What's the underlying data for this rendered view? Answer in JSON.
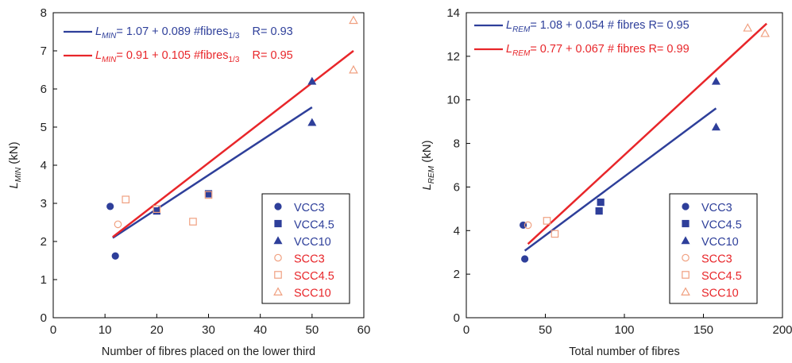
{
  "colors": {
    "blue": "#2e3f9a",
    "red": "#e8262a",
    "salmon": "#f0a080",
    "axis": "#000000"
  },
  "chart_data": [
    {
      "type": "scatter",
      "xlabel": "Number of fibres placed on the lower third",
      "ylabel": {
        "main": "L",
        "sub": "MIN",
        "unit": " (kN)"
      },
      "xlim": [
        0,
        60
      ],
      "ylim": [
        0,
        8
      ],
      "xticks": [
        0,
        10,
        20,
        30,
        40,
        50,
        60
      ],
      "yticks": [
        0,
        1,
        2,
        3,
        4,
        5,
        6,
        7,
        8
      ],
      "equations": [
        {
          "color": "blue",
          "lead": "L",
          "sub": "MIN",
          "body": "= 1.07 + 0.089 #fibres",
          "tail_sub": "1/3",
          "r": "R= 0.93"
        },
        {
          "color": "red",
          "lead": "L",
          "sub": "MIN",
          "body": "= 0.91 + 0.105 #fibres",
          "tail_sub": "1/3",
          "r": "R= 0.95"
        }
      ],
      "fits": [
        {
          "color": "blue",
          "x": [
            11.5,
            50
          ],
          "intercept": 1.07,
          "slope": 0.089
        },
        {
          "color": "red",
          "x": [
            11.5,
            58
          ],
          "intercept": 0.91,
          "slope": 0.105
        }
      ],
      "series": [
        {
          "name": "VCC3",
          "marker": "circle",
          "filled": true,
          "color": "blue",
          "points": [
            [
              11,
              2.92
            ],
            [
              12,
              1.62
            ]
          ]
        },
        {
          "name": "VCC4.5",
          "marker": "square",
          "filled": true,
          "color": "blue",
          "points": [
            [
              20,
              2.8
            ],
            [
              30,
              3.25
            ]
          ]
        },
        {
          "name": "VCC10",
          "marker": "triangle",
          "filled": true,
          "color": "blue",
          "points": [
            [
              50,
              6.2
            ],
            [
              50,
              5.12
            ]
          ]
        },
        {
          "name": "SCC3",
          "marker": "circle",
          "filled": false,
          "color": "salmon",
          "points": [
            [
              12.5,
              2.45
            ]
          ]
        },
        {
          "name": "SCC4.5",
          "marker": "square",
          "filled": false,
          "color": "salmon",
          "points": [
            [
              14,
              3.1
            ],
            [
              20,
              2.85
            ],
            [
              27,
              2.52
            ],
            [
              30,
              3.22
            ]
          ]
        },
        {
          "name": "SCC10",
          "marker": "triangle",
          "filled": false,
          "color": "salmon",
          "points": [
            [
              58,
              7.8
            ],
            [
              58,
              6.5
            ]
          ]
        }
      ],
      "legend_placement": "bottom-right",
      "grid": false
    },
    {
      "type": "scatter",
      "xlabel": "Total number of fibres",
      "ylabel": {
        "main": "L",
        "sub": "REM",
        "unit": " (kN)"
      },
      "xlim": [
        0,
        200
      ],
      "ylim": [
        0,
        14
      ],
      "xticks": [
        0,
        50,
        100,
        150,
        200
      ],
      "yticks": [
        0,
        2,
        4,
        6,
        8,
        10,
        12,
        14
      ],
      "equations": [
        {
          "color": "blue",
          "lead": "L",
          "sub": "REM",
          "body": "= 1.08 + 0.054 # fibres R= 0.95",
          "tail_sub": "",
          "r": ""
        },
        {
          "color": "red",
          "lead": "L",
          "sub": "REM",
          "body": "= 0.77 + 0.067 # fibres  R= 0.99",
          "tail_sub": "",
          "r": ""
        }
      ],
      "fits": [
        {
          "color": "blue",
          "x": [
            37,
            158
          ],
          "intercept": 1.08,
          "slope": 0.054
        },
        {
          "color": "red",
          "x": [
            39,
            190
          ],
          "intercept": 0.77,
          "slope": 0.067
        }
      ],
      "series": [
        {
          "name": "VCC3",
          "marker": "circle",
          "filled": true,
          "color": "blue",
          "points": [
            [
              36,
              4.25
            ],
            [
              37,
              2.7
            ]
          ]
        },
        {
          "name": "VCC4.5",
          "marker": "square",
          "filled": true,
          "color": "blue",
          "points": [
            [
              84,
              4.9
            ],
            [
              85,
              5.3
            ]
          ]
        },
        {
          "name": "VCC10",
          "marker": "triangle",
          "filled": true,
          "color": "blue",
          "points": [
            [
              158,
              10.85
            ],
            [
              158,
              8.75
            ]
          ]
        },
        {
          "name": "SCC3",
          "marker": "circle",
          "filled": false,
          "color": "salmon",
          "points": [
            [
              39,
              4.25
            ]
          ]
        },
        {
          "name": "SCC4.5",
          "marker": "square",
          "filled": false,
          "color": "salmon",
          "points": [
            [
              51,
              4.45
            ],
            [
              56,
              3.85
            ]
          ]
        },
        {
          "name": "SCC10",
          "marker": "triangle",
          "filled": false,
          "color": "salmon",
          "points": [
            [
              178,
              13.3
            ],
            [
              189,
              13.05
            ]
          ]
        }
      ],
      "legend_placement": "bottom-right",
      "grid": false
    }
  ]
}
